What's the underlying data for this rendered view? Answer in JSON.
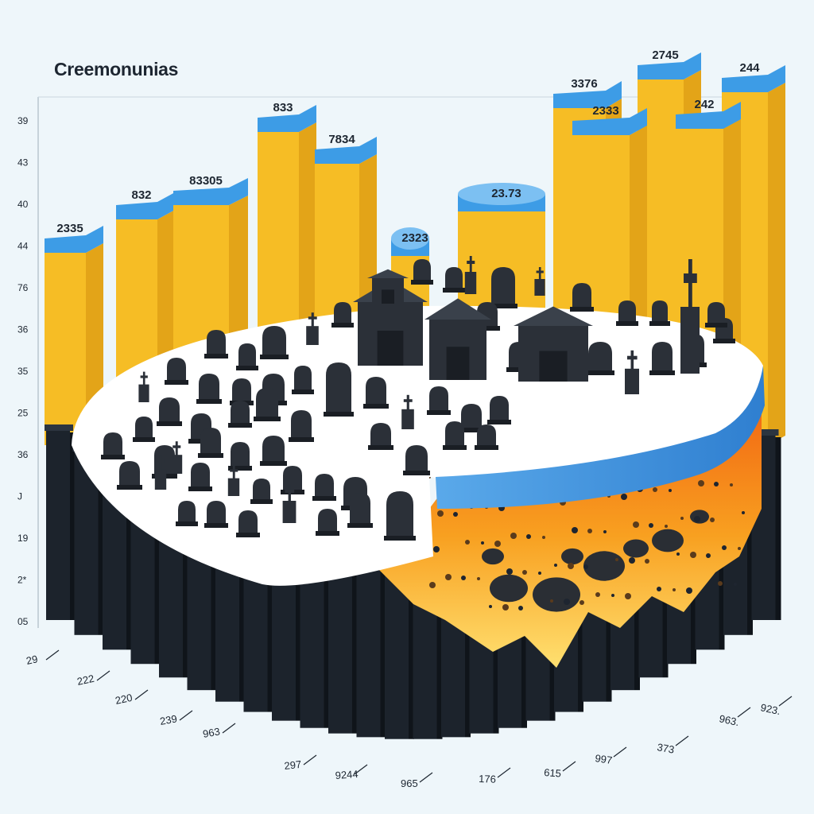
{
  "chart_data": {
    "type": "bar",
    "title": "Creemonunias",
    "xlabel": "",
    "ylabel": "",
    "y_tick_labels": [
      "39",
      "43",
      "40",
      "44",
      "76",
      "36",
      "35",
      "25",
      "36",
      "J",
      "19",
      "2*",
      "05"
    ],
    "x_tick_labels": [
      "29",
      "222",
      "220",
      "239",
      "963",
      "297",
      "9244",
      "965",
      "176",
      "615",
      "997",
      "373",
      "963.",
      "923."
    ],
    "back_bars": [
      {
        "label": "2335",
        "value": 2335
      },
      {
        "label": "832",
        "value": 832
      },
      {
        "label": "83305",
        "value": 83305
      },
      {
        "label": "833",
        "value": 833
      },
      {
        "label": "7834",
        "value": 7834
      },
      {
        "label": "2323",
        "value": 2323
      },
      {
        "label": "23.73",
        "value": 23.73
      },
      {
        "label": "3376",
        "value": 3376
      },
      {
        "label": "2333",
        "value": 2333
      },
      {
        "label": "2745",
        "value": 2745
      },
      {
        "label": "242",
        "value": 242
      },
      {
        "label": "244",
        "value": 244
      }
    ],
    "grid": false,
    "legend": "none"
  },
  "colors": {
    "background": "#eef6fa",
    "bar_front": "#f6bd25",
    "bar_side": "#e3a418",
    "bar_top": "#3d9ce6",
    "front_bar": "#1c232c",
    "platter_top": "#ffffff",
    "platter_rim": "#3d8fdc",
    "fire": "#f58a1c",
    "tombstone": "#2b3038"
  },
  "icons": [
    "tombstone-icon",
    "cross-icon",
    "mausoleum-icon",
    "flame-icon",
    "coal-icon"
  ]
}
